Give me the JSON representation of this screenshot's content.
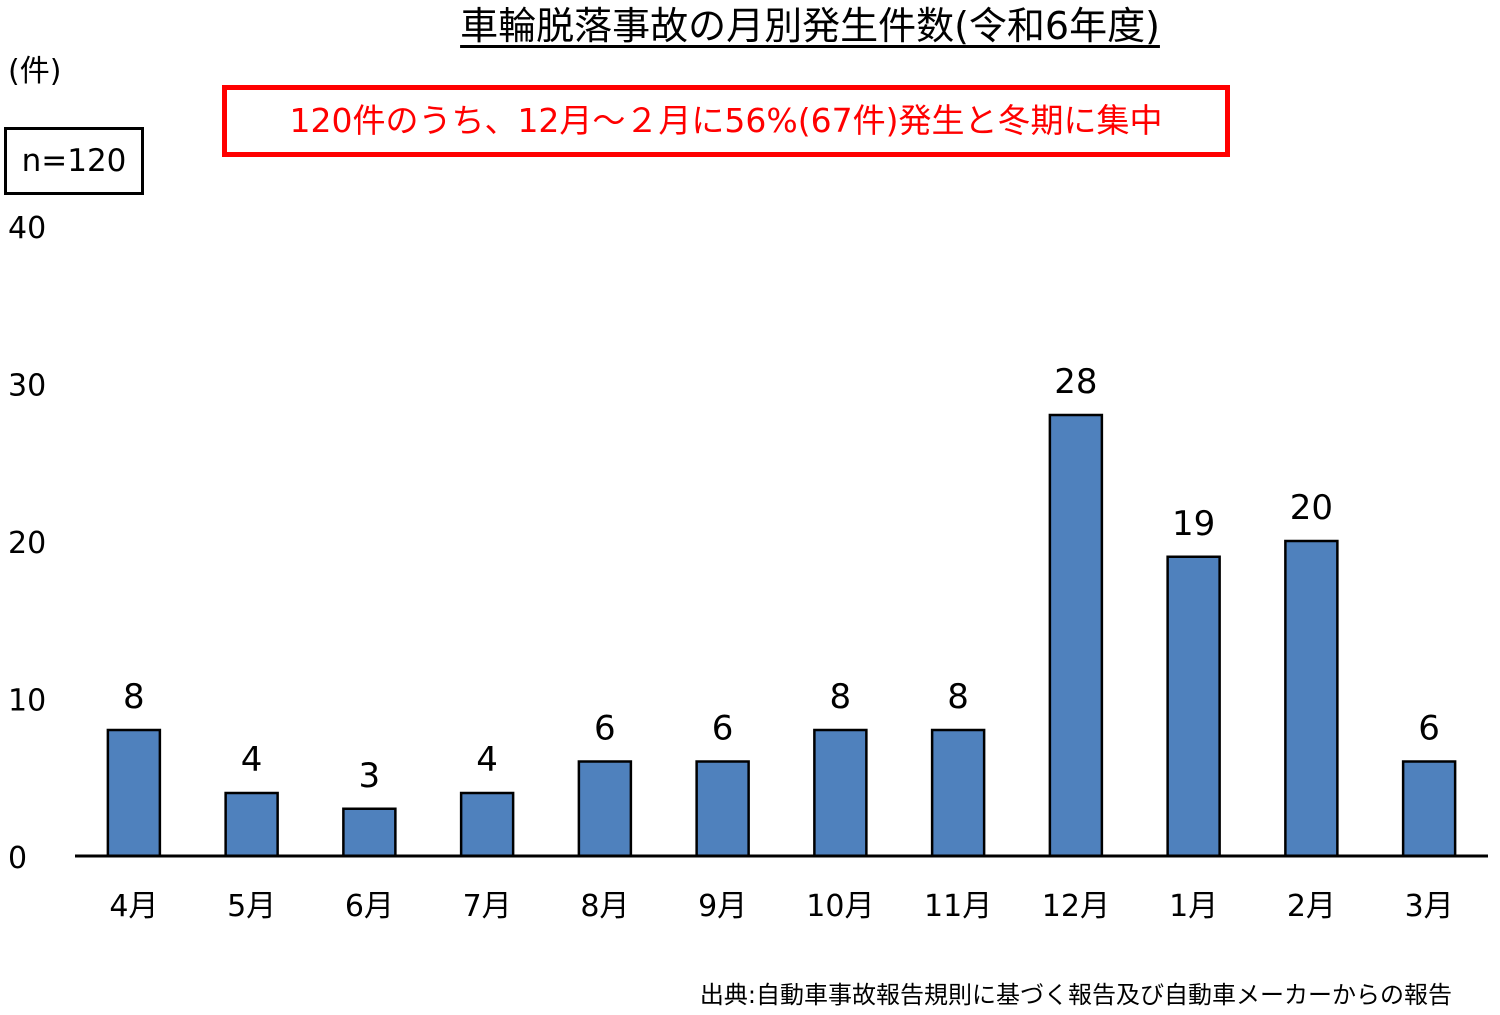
{
  "chart_data": {
    "type": "bar",
    "title": "車輪脱落事故の月別発生件数(令和6年度)",
    "ylabel": "(件)",
    "xlabel": "",
    "categories": [
      "4月",
      "5月",
      "6月",
      "7月",
      "8月",
      "9月",
      "10月",
      "11月",
      "12月",
      "1月",
      "2月",
      "3月"
    ],
    "values": [
      8,
      4,
      3,
      4,
      6,
      6,
      8,
      8,
      28,
      19,
      20,
      6
    ],
    "ylim": [
      0,
      40
    ],
    "yticks": [
      0,
      10,
      20,
      30,
      40
    ],
    "grid": false,
    "bar_color": "#4f81bd",
    "annotation_box": "n=120",
    "callout": "120件のうち、12月～２月に56%(67件)発生と冬期に集中",
    "callout_color": "#ff0000",
    "source": "出典:自動車事故報告規則に基づく報告及び自動車メーカーからの報告"
  }
}
